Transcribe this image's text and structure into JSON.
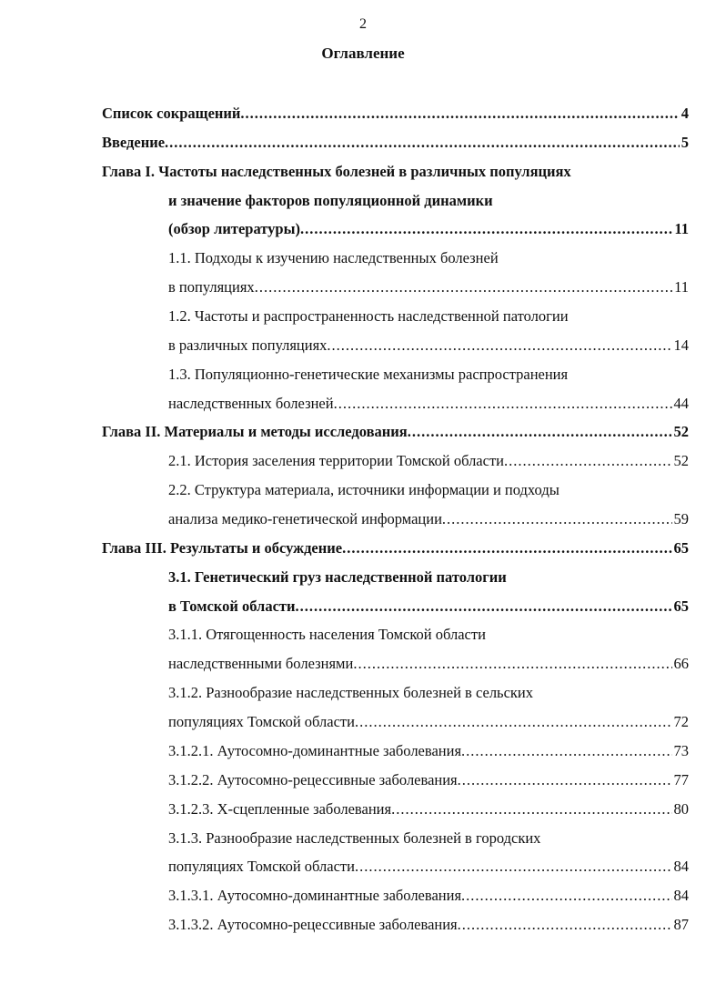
{
  "page_number": "2",
  "title": "Оглавление",
  "entries": [
    {
      "text": "Список сокращений",
      "page": "4",
      "bold": true,
      "indent": false
    },
    {
      "text": "Введение",
      "page": "5",
      "bold": true,
      "indent": false
    },
    {
      "text": "Глава I. Частоты наследственных болезней в различных популяциях",
      "page": "",
      "bold": true,
      "indent": false
    },
    {
      "text": "и значение факторов популяционной динамики",
      "page": "",
      "bold": true,
      "indent": true
    },
    {
      "text": "(обзор литературы)",
      "page": "11",
      "bold": true,
      "indent": true
    },
    {
      "text": "1.1. Подходы к изучению наследственных болезней",
      "page": "",
      "bold": false,
      "indent": true
    },
    {
      "text": "в популяциях",
      "page": "11",
      "bold": false,
      "indent": true
    },
    {
      "text": "1.2. Частоты и распространенность наследственной патологии",
      "page": "",
      "bold": false,
      "indent": true
    },
    {
      "text": "в различных популяциях",
      "page": "14",
      "bold": false,
      "indent": true
    },
    {
      "text": "1.3. Популяционно-генетические механизмы распространения",
      "page": "",
      "bold": false,
      "indent": true
    },
    {
      "text": "наследственных болезней",
      "page": "44",
      "bold": false,
      "indent": true
    },
    {
      "text": "Глава II. Материалы и методы исследования",
      "page": "52",
      "bold": true,
      "indent": false
    },
    {
      "text": "2.1. История заселения территории Томской области",
      "page": "52",
      "bold": false,
      "indent": true
    },
    {
      "text": "2.2. Структура материала, источники информации и подходы",
      "page": "",
      "bold": false,
      "indent": true
    },
    {
      "text": "анализа медико-генетической информации",
      "page": "59",
      "bold": false,
      "indent": true
    },
    {
      "text": "Глава III. Результаты и обсуждение",
      "page": "65",
      "bold": true,
      "indent": false
    },
    {
      "text": "3.1. Генетический груз наследственной патологии",
      "page": "",
      "bold": true,
      "indent": true
    },
    {
      "text": "в Томской области",
      "page": "65",
      "bold": true,
      "indent": true
    },
    {
      "text": "3.1.1. Отягощенность населения Томской области",
      "page": "",
      "bold": false,
      "indent": true
    },
    {
      "text": "наследственными болезнями",
      "page": "66",
      "bold": false,
      "indent": true
    },
    {
      "text": "3.1.2. Разнообразие наследственных болезней в сельских",
      "page": "",
      "bold": false,
      "indent": true
    },
    {
      "text": "популяциях Томской области",
      "page": "72",
      "bold": false,
      "indent": true
    },
    {
      "text": "3.1.2.1. Аутосомно-доминантные заболевания",
      "page": "73",
      "bold": false,
      "indent": true
    },
    {
      "text": "3.1.2.2. Аутосомно-рецессивные заболевания",
      "page": "77",
      "bold": false,
      "indent": true
    },
    {
      "text": "3.1.2.3. Х-сцепленные заболевания",
      "page": "80",
      "bold": false,
      "indent": true
    },
    {
      "text": "3.1.3. Разнообразие наследственных болезней в городских",
      "page": "",
      "bold": false,
      "indent": true
    },
    {
      "text": "популяциях Томской области",
      "page": "84",
      "bold": false,
      "indent": true
    },
    {
      "text": "3.1.3.1. Аутосомно-доминантные заболевания",
      "page": "84",
      "bold": false,
      "indent": true
    },
    {
      "text": "3.1.3.2. Аутосомно-рецессивные заболевания",
      "page": "87",
      "bold": false,
      "indent": true
    }
  ]
}
